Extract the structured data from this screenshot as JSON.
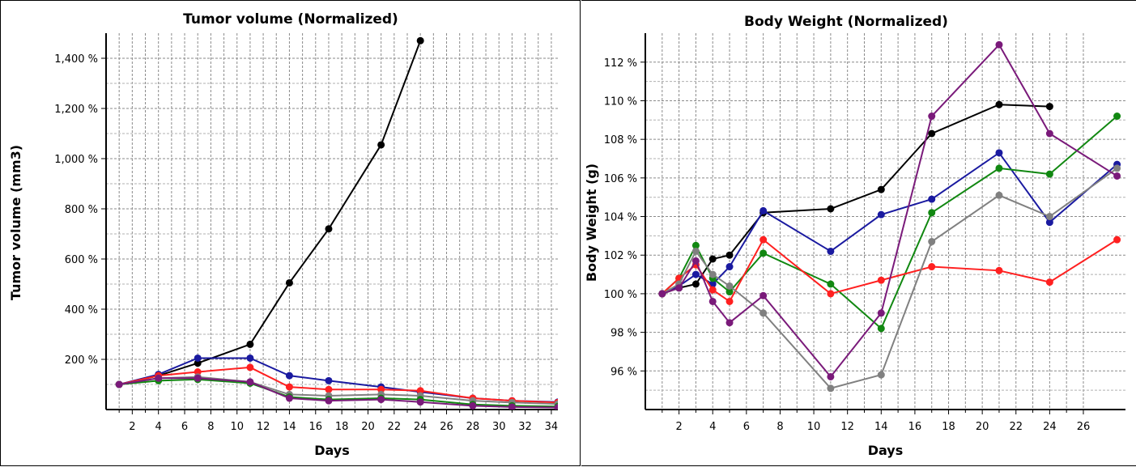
{
  "chart_data": [
    {
      "type": "line",
      "title": "Tumor volume (Normalized)",
      "xlabel": "Days",
      "ylabel": "Tumor volume (mm3)",
      "xlim": [
        0,
        34.5
      ],
      "ylim": [
        0,
        1500
      ],
      "x_ticks": [
        2,
        4,
        6,
        8,
        10,
        12,
        14,
        16,
        18,
        20,
        22,
        24,
        26,
        28,
        30,
        32,
        34
      ],
      "y_ticks": [
        200,
        400,
        600,
        800,
        1000,
        1200,
        1400
      ],
      "y_tick_labels": [
        "200 %",
        "400 %",
        "600 %",
        "800 %",
        "1,000 %",
        "1,200 %",
        "1,400 %"
      ],
      "grid": true,
      "series": [
        {
          "color": "#000000",
          "x": [
            1,
            4,
            7,
            11,
            14,
            17,
            21,
            24
          ],
          "y": [
            100,
            135,
            185,
            260,
            505,
            720,
            1055,
            1470
          ]
        },
        {
          "color": "#1a1aa0",
          "x": [
            1,
            4,
            7,
            11,
            14,
            17,
            21,
            24,
            28,
            31,
            34.5
          ],
          "y": [
            100,
            140,
            205,
            205,
            135,
            115,
            90,
            70,
            45,
            35,
            30
          ]
        },
        {
          "color": "#ff2020",
          "x": [
            1,
            4,
            7,
            11,
            14,
            17,
            21,
            24,
            28,
            31,
            34.5
          ],
          "y": [
            100,
            135,
            150,
            168,
            90,
            80,
            80,
            75,
            45,
            35,
            28
          ]
        },
        {
          "color": "#808080",
          "x": [
            1,
            4,
            7,
            11,
            14,
            17,
            21,
            24,
            28,
            31,
            34.5
          ],
          "y": [
            100,
            125,
            130,
            110,
            60,
            55,
            60,
            55,
            35,
            28,
            22
          ]
        },
        {
          "color": "#118811",
          "x": [
            1,
            4,
            7,
            11,
            14,
            17,
            21,
            24,
            28,
            31,
            34.5
          ],
          "y": [
            100,
            115,
            120,
            105,
            50,
            40,
            45,
            40,
            20,
            15,
            12
          ]
        },
        {
          "color": "#7a1a7a",
          "x": [
            1,
            4,
            7,
            11,
            14,
            17,
            21,
            24,
            28,
            31,
            34.5
          ],
          "y": [
            100,
            125,
            125,
            110,
            45,
            35,
            40,
            30,
            15,
            10,
            8
          ]
        }
      ]
    },
    {
      "type": "line",
      "title": "Body Weight (Normalized)",
      "xlabel": "Days",
      "ylabel": "Body Weight (g)",
      "xlim": [
        0,
        28.5
      ],
      "ylim": [
        94,
        113.5
      ],
      "x_ticks": [
        2,
        4,
        6,
        8,
        10,
        12,
        14,
        16,
        18,
        20,
        22,
        24,
        26
      ],
      "y_ticks": [
        96,
        98,
        100,
        102,
        104,
        106,
        108,
        110,
        112
      ],
      "y_tick_labels": [
        "96 %",
        "98 %",
        "100 %",
        "102 %",
        "104 %",
        "106 %",
        "108 %",
        "110 %",
        "112 %"
      ],
      "grid": true,
      "series": [
        {
          "color": "#000000",
          "x": [
            1,
            2,
            3,
            4,
            5,
            7,
            11,
            14,
            17,
            21,
            24
          ],
          "y": [
            100,
            100.3,
            100.5,
            101.8,
            102,
            104.2,
            104.4,
            105.4,
            108.3,
            109.8,
            109.7
          ]
        },
        {
          "color": "#1a1aa0",
          "x": [
            1,
            2,
            3,
            4,
            5,
            7,
            11,
            14,
            17,
            21,
            24,
            28
          ],
          "y": [
            100,
            100.4,
            101,
            100.5,
            101.4,
            104.3,
            102.2,
            104.1,
            104.9,
            107.3,
            103.7,
            106.7
          ]
        },
        {
          "color": "#118811",
          "x": [
            1,
            2,
            3,
            4,
            5,
            7,
            11,
            14,
            17,
            21,
            24,
            28
          ],
          "y": [
            100,
            100.8,
            102.5,
            100.8,
            100.1,
            102.1,
            100.5,
            98.2,
            104.2,
            106.5,
            106.2,
            109.2
          ]
        },
        {
          "color": "#ff2020",
          "x": [
            1,
            2,
            3,
            4,
            5,
            7,
            11,
            14,
            17,
            21,
            24,
            28
          ],
          "y": [
            100,
            100.8,
            101.5,
            100.2,
            99.6,
            102.8,
            100,
            100.7,
            101.4,
            101.2,
            100.6,
            102.8
          ]
        },
        {
          "color": "#808080",
          "x": [
            1,
            2,
            3,
            4,
            5,
            7,
            11,
            14,
            17,
            21,
            24,
            28
          ],
          "y": [
            100,
            100.5,
            102.2,
            101,
            100.4,
            99,
            95.1,
            95.8,
            102.7,
            105.1,
            104,
            106.5
          ]
        },
        {
          "color": "#7a1a7a",
          "x": [
            1,
            2,
            3,
            4,
            5,
            7,
            11,
            14,
            17,
            21,
            24,
            28
          ],
          "y": [
            100,
            100.3,
            101.7,
            99.6,
            98.5,
            99.9,
            95.7,
            99,
            109.2,
            112.9,
            108.3,
            106.1
          ]
        }
      ]
    }
  ]
}
